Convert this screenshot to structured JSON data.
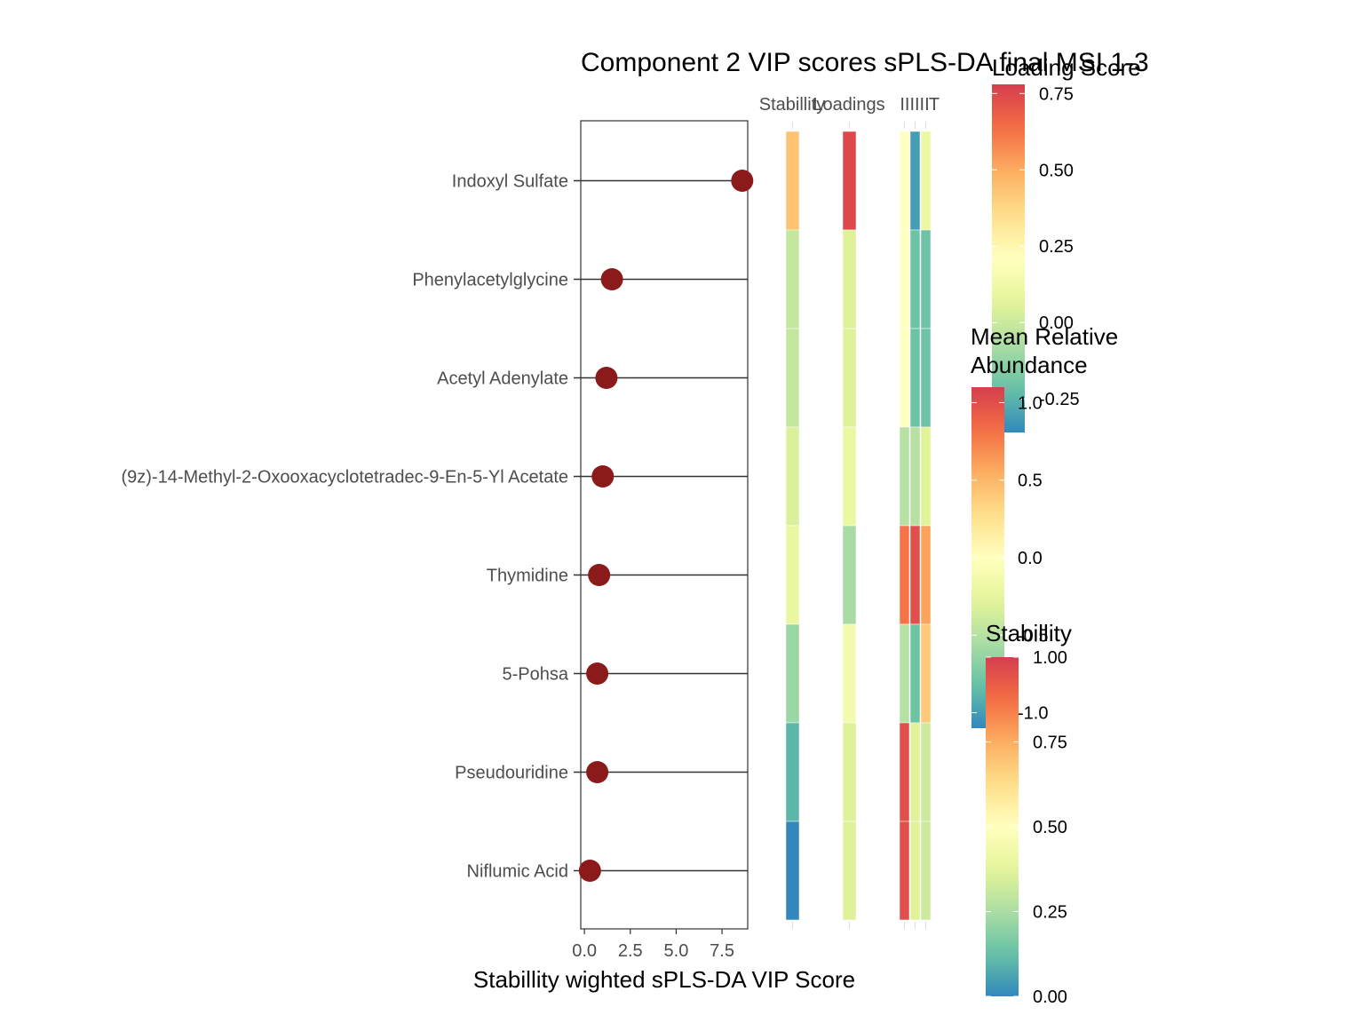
{
  "chart_data": {
    "type": "lollipop-heatmap",
    "title": "Component 2 VIP scores sPLS-DA final MSI 1-3",
    "xlabel": "Stabillity wighted sPLS-DA VIP Score",
    "xticks": [
      "0.0",
      "2.5",
      "5.0",
      "7.5"
    ],
    "xlim": [
      -0.2,
      8.9
    ],
    "categories": [
      "Indoxyl Sulfate",
      "Phenylacetylglycine",
      "Acetyl Adenylate",
      "(9z)-14-Methyl-2-Oxooxacyclotetradec-9-En-5-Yl Acetate",
      "Thymidine",
      "5-Pohsa",
      "Pseudouridine",
      "Niflumic Acid"
    ],
    "vip_values": [
      8.6,
      1.5,
      1.2,
      1.0,
      0.8,
      0.7,
      0.7,
      0.3
    ],
    "point_color": "#8b1a1a",
    "heatmap_columns": [
      "Stabillity",
      "Loadings",
      "I",
      "II",
      "III",
      "T"
    ],
    "heatmap_column_header_texts": [
      "Stabillity",
      "Loadings",
      "IIIIII",
      "T"
    ],
    "stability": [
      0.7,
      0.3,
      0.3,
      0.35,
      0.4,
      0.22,
      0.1,
      0.0
    ],
    "loading": [
      0.75,
      0.05,
      0.05,
      0.1,
      -0.08,
      0.15,
      0.05,
      0.05
    ],
    "mean_abundance": {
      "I": [
        0.0,
        0.0,
        0.0,
        -0.5,
        0.8,
        -0.5,
        1.0,
        1.0
      ],
      "II": [
        -1.0,
        -0.8,
        -0.8,
        -0.5,
        1.0,
        -0.8,
        -0.3,
        -0.3
      ],
      "III": [
        -0.2,
        -0.8,
        -0.8,
        -0.3,
        0.6,
        0.4,
        -0.4,
        -0.4
      ]
    },
    "legends": [
      {
        "title": "Loading Score",
        "ticks": [
          "0.75",
          "0.50",
          "0.25",
          "0.00",
          "-0.25"
        ],
        "tick_values": [
          0.75,
          0.5,
          0.25,
          0.0,
          -0.25
        ],
        "range": [
          -0.36,
          0.78
        ]
      },
      {
        "title": "Mean Relative Abundance",
        "title_lines": [
          "Mean Relative",
          "Abundance"
        ],
        "ticks": [
          "1.0",
          "0.5",
          "0.0",
          "-0.5",
          "-1.0"
        ],
        "tick_values": [
          1.0,
          0.5,
          0.0,
          -0.5,
          -1.0
        ],
        "range": [
          -1.1,
          1.1
        ]
      },
      {
        "title": "Stabillity",
        "title_lines": [
          "Stabillity"
        ],
        "ticks": [
          "1.00",
          "0.75",
          "0.50",
          "0.25",
          "0.00"
        ],
        "tick_values": [
          1.0,
          0.75,
          0.5,
          0.25,
          0.0
        ],
        "range": [
          0.0,
          1.0
        ]
      }
    ],
    "palette": [
      "#3288bd",
      "#66c2a5",
      "#abdda4",
      "#e6f598",
      "#ffffbf",
      "#fee08b",
      "#fdae61",
      "#f46d43",
      "#d53e4f"
    ]
  }
}
